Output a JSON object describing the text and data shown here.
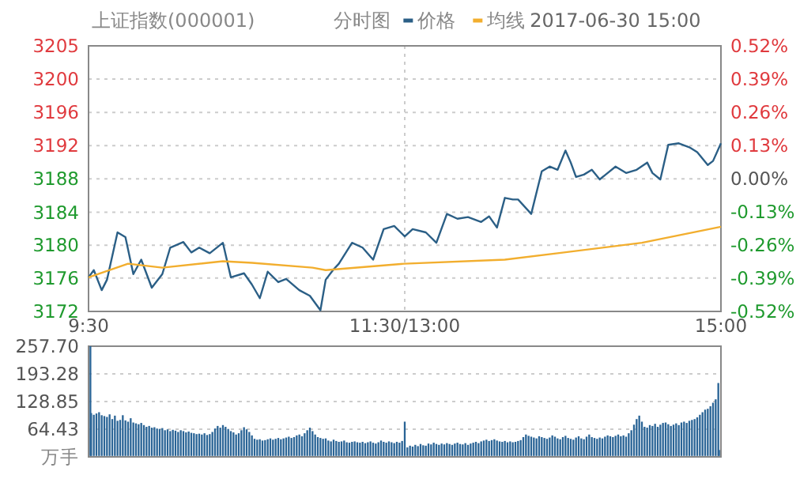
{
  "chart_data": [
    {
      "type": "line",
      "title": "上证指数(000001)",
      "annotations": [
        "分时图",
        "2017-06-30 15:00"
      ],
      "legend": "top",
      "grid": true,
      "categories": [
        "9:30",
        null,
        null,
        null,
        null,
        null,
        null,
        null,
        null,
        null,
        null,
        null,
        null,
        null,
        null,
        null,
        null,
        null,
        null,
        null,
        null,
        null,
        null,
        null,
        null,
        null,
        null,
        null,
        null,
        null,
        null,
        null,
        null,
        null,
        null,
        null,
        null,
        null,
        null,
        null,
        null,
        null,
        null,
        null,
        null,
        null,
        null,
        null,
        null,
        null,
        null,
        null,
        null,
        null,
        null,
        null,
        null,
        null,
        null,
        null,
        null,
        null,
        null,
        null,
        null,
        null,
        null,
        null,
        null,
        null,
        null,
        null,
        null,
        null,
        null,
        null,
        null,
        null,
        null,
        null,
        null,
        null,
        null,
        null,
        null,
        null,
        null,
        null,
        null,
        null,
        null,
        null,
        null,
        null,
        null,
        null,
        null,
        null,
        null,
        null,
        null,
        null,
        null,
        null,
        null,
        null,
        null,
        null,
        null,
        null,
        null,
        null,
        null,
        null,
        null,
        null,
        null,
        null,
        null,
        null,
        "11:30/13:00",
        null,
        null,
        null,
        null,
        null,
        null,
        null,
        null,
        null,
        null,
        null,
        null,
        null,
        null,
        null,
        null,
        null,
        null,
        null,
        null,
        null,
        null,
        null,
        null,
        null,
        null,
        null,
        null,
        null,
        null,
        null,
        null,
        null,
        null,
        null,
        null,
        null,
        null,
        null,
        null,
        null,
        null,
        null,
        null,
        null,
        null,
        null,
        null,
        null,
        null,
        null,
        null,
        null,
        null,
        null,
        null,
        null,
        null,
        null,
        null,
        null,
        null,
        null,
        null,
        null,
        null,
        null,
        null,
        null,
        null,
        null,
        null,
        null,
        null,
        null,
        null,
        null,
        null,
        null,
        null,
        null,
        null,
        null,
        null,
        null,
        null,
        null,
        null,
        null,
        null,
        null,
        null,
        null,
        null,
        null,
        null,
        null,
        null,
        null,
        null,
        null,
        null,
        null,
        null,
        null,
        null,
        null,
        null,
        null,
        null,
        null,
        null,
        null,
        null,
        null,
        null,
        null,
        null,
        null,
        "15:00"
      ],
      "ylim": [
        3171.55,
        3204.64
      ],
      "yticks": [
        {
          "value": 3171.55,
          "label": "3172"
        },
        {
          "value": 3175.7,
          "label": "3176"
        },
        {
          "value": 3179.8,
          "label": "3180"
        },
        {
          "value": 3183.9,
          "label": "3184"
        },
        {
          "value": 3188.06,
          "label": "3188"
        },
        {
          "value": 3192.2,
          "label": "3192"
        },
        {
          "value": 3196.35,
          "label": "3196"
        },
        {
          "value": 3200.5,
          "label": "3200"
        },
        {
          "value": 3204.64,
          "label": "3205"
        }
      ],
      "y2lim": [
        -0.52,
        0.52
      ],
      "y2ticks": [
        {
          "value": -0.52,
          "label": "-0.52%"
        },
        {
          "value": -0.39,
          "label": "-0.39%"
        },
        {
          "value": -0.26,
          "label": "-0.26%"
        },
        {
          "value": -0.13,
          "label": "-0.13%"
        },
        {
          "value": 0,
          "label": "0.00%"
        },
        {
          "value": 0.13,
          "label": "0.13%"
        },
        {
          "value": 0.26,
          "label": "0.26%"
        },
        {
          "value": 0.39,
          "label": "0.39%"
        },
        {
          "value": 0.52,
          "label": "0.52%"
        }
      ],
      "series": [
        {
          "name": "价格",
          "color": "#2b5f86",
          "values": [
            3175.8,
            null,
            3176.7,
            null,
            null,
            3174.2,
            null,
            3175.5,
            null,
            null,
            null,
            3181.4,
            null,
            null,
            3180.8,
            null,
            null,
            3176.2,
            null,
            null,
            3178.0,
            null,
            null,
            null,
            3174.5,
            null,
            null,
            null,
            3176.2,
            null,
            null,
            3179.5,
            null,
            null,
            null,
            null,
            3180.2,
            null,
            null,
            3178.9,
            null,
            null,
            3179.5,
            null,
            null,
            null,
            3178.8,
            null,
            null,
            null,
            null,
            3180.1,
            null,
            null,
            3175.8,
            null,
            null,
            null,
            null,
            3176.3,
            null,
            null,
            3174.9,
            null,
            null,
            3173.2,
            null,
            null,
            3176.5,
            null,
            null,
            null,
            3175.2,
            null,
            null,
            3175.6,
            null,
            null,
            null,
            null,
            3174.2,
            null,
            null,
            null,
            3173.5,
            null,
            null,
            null,
            3171.7,
            null,
            3175.5,
            null,
            null,
            3176.8,
            null,
            3177.5,
            null,
            null,
            null,
            null,
            3180.1,
            null,
            null,
            null,
            3179.5,
            null,
            null,
            null,
            3178.0,
            null,
            null,
            null,
            3181.8,
            null,
            null,
            null,
            3182.2,
            null,
            null,
            null,
            3180.9,
            null,
            null,
            3181.8,
            null,
            null,
            null,
            null,
            3181.4,
            null,
            null,
            null,
            3180.1,
            null,
            null,
            null,
            3183.7,
            null,
            null,
            null,
            3183.1,
            null,
            null,
            null,
            3183.3,
            null,
            null,
            null,
            null,
            3182.7,
            null,
            null,
            3183.4,
            null,
            null,
            3182.0,
            null,
            null,
            3185.7,
            null,
            null,
            3185.5,
            null,
            3185.5,
            null,
            null,
            null,
            null,
            3183.7,
            null,
            null,
            null,
            3189.0,
            null,
            null,
            3189.6,
            null,
            null,
            3189.2,
            null,
            null,
            3191.6,
            null,
            3190.1,
            null,
            3188.3,
            null,
            null,
            3188.6,
            null,
            null,
            3189.2,
            null,
            null,
            3188.0,
            null,
            null,
            3188.8,
            null,
            null,
            3189.6,
            null,
            null,
            null,
            3188.8,
            null,
            null,
            null,
            3189.2,
            null,
            null,
            null,
            3190.1,
            null,
            3188.8,
            null,
            null,
            3188.0,
            null,
            null,
            3192.3,
            null,
            null,
            null,
            3192.5,
            null,
            null,
            null,
            3192.0,
            null,
            null,
            3191.4,
            null,
            null,
            null,
            3189.8,
            null,
            3190.3,
            null,
            null,
            3192.5
          ]
        },
        {
          "name": "均线",
          "color": "#f2ae2e",
          "values": [
            3175.8,
            null,
            null,
            null,
            null,
            null,
            null,
            null,
            null,
            null,
            null,
            null,
            null,
            null,
            null,
            3177.5,
            null,
            null,
            null,
            null,
            null,
            null,
            null,
            null,
            null,
            null,
            null,
            null,
            3177.0,
            null,
            null,
            null,
            null,
            null,
            null,
            null,
            null,
            null,
            null,
            null,
            null,
            null,
            null,
            null,
            null,
            null,
            null,
            null,
            null,
            null,
            null,
            3177.8,
            null,
            null,
            null,
            null,
            null,
            null,
            null,
            null,
            null,
            null,
            3177.6,
            null,
            null,
            null,
            null,
            null,
            null,
            null,
            null,
            null,
            null,
            null,
            null,
            null,
            null,
            null,
            null,
            null,
            null,
            null,
            null,
            null,
            null,
            3177.0,
            null,
            null,
            null,
            null,
            3176.7,
            null,
            null,
            null,
            null,
            null,
            null,
            null,
            null,
            null,
            null,
            null,
            null,
            null,
            null,
            null,
            null,
            null,
            null,
            null,
            null,
            null,
            null,
            null,
            null,
            null,
            null,
            null,
            null,
            null,
            3177.5,
            null,
            null,
            null,
            null,
            null,
            null,
            null,
            null,
            null,
            null,
            null,
            null,
            null,
            null,
            null,
            null,
            null,
            null,
            null,
            null,
            null,
            null,
            null,
            null,
            null,
            null,
            null,
            null,
            null,
            null,
            null,
            null,
            null,
            null,
            null,
            null,
            null,
            3178.0,
            null,
            null,
            null,
            null,
            null,
            null,
            null,
            null,
            null,
            null,
            null,
            null,
            null,
            null,
            null,
            null,
            null,
            null,
            null,
            3178.8,
            null,
            null,
            null,
            null,
            null,
            null,
            null,
            null,
            null,
            null,
            null,
            null,
            null,
            null,
            null,
            null,
            null,
            null,
            null,
            null,
            null,
            null,
            null,
            null,
            null,
            null,
            null,
            null,
            null,
            null,
            null,
            3180.1,
            null,
            null,
            null,
            null,
            null,
            null,
            null,
            null,
            null,
            null,
            null,
            null,
            null,
            null,
            null,
            null,
            null,
            null,
            null,
            null,
            null,
            null,
            null,
            null,
            null,
            null,
            null,
            null,
            null,
            3182.1
          ]
        }
      ]
    },
    {
      "type": "bar",
      "ylabel": "万手",
      "grid": "y",
      "tick_labels": "y",
      "color": "#2a6496",
      "ylim": [
        0,
        257.7
      ],
      "yticks": [
        {
          "value": 0,
          "label": null
        },
        {
          "value": 64.43,
          "label": "64.43"
        },
        {
          "value": 128.85,
          "label": "128.85"
        },
        {
          "value": 193.28,
          "label": "193.28"
        },
        {
          "value": 257.7,
          "label": "257.70"
        }
      ],
      "categories": [
        null,
        null,
        null,
        null,
        null,
        null,
        null,
        null,
        null,
        null,
        null,
        null,
        null,
        null,
        null,
        null,
        null,
        null,
        null,
        null,
        null,
        null,
        null,
        null,
        null,
        null,
        null,
        null,
        null,
        null,
        null,
        null,
        null,
        null,
        null,
        null,
        null,
        null,
        null,
        null,
        null,
        null,
        null,
        null,
        null,
        null,
        null,
        null,
        null,
        null,
        null,
        null,
        null,
        null,
        null,
        null,
        null,
        null,
        null,
        null,
        null,
        null,
        null,
        null,
        null,
        null,
        null,
        null,
        null,
        null,
        null,
        null,
        null,
        null,
        null,
        null,
        null,
        null,
        null,
        null,
        null,
        null,
        null,
        null,
        null,
        null,
        null,
        null,
        null,
        null,
        null,
        null,
        null,
        null,
        null,
        null,
        null,
        null,
        null,
        null,
        null,
        null,
        null,
        null,
        null,
        null,
        null,
        null,
        null,
        null,
        null,
        null,
        null,
        null,
        null,
        null,
        null,
        null,
        null,
        null,
        null,
        null,
        null,
        null,
        null,
        null,
        null,
        null,
        null,
        null,
        null,
        null,
        null,
        null,
        null,
        null,
        null,
        null,
        null,
        null,
        null,
        null,
        null,
        null,
        null,
        null,
        null,
        null,
        null,
        null,
        null,
        null,
        null,
        null,
        null,
        null,
        null,
        null,
        null,
        null,
        null,
        null,
        null,
        null,
        null,
        null,
        null,
        null,
        null,
        null,
        null,
        null,
        null,
        null,
        null,
        null,
        null,
        null,
        null,
        null,
        null,
        null,
        null,
        null,
        null,
        null,
        null,
        null,
        null,
        null,
        null,
        null,
        null,
        null,
        null,
        null,
        null,
        null,
        null,
        null,
        null,
        null,
        null,
        null,
        null,
        null,
        null,
        null,
        null,
        null,
        null,
        null,
        null,
        null,
        null,
        null,
        null,
        null,
        null,
        null,
        null,
        null,
        null,
        null,
        null,
        null,
        null,
        null,
        null,
        null,
        null,
        null,
        null,
        null,
        null,
        null,
        null,
        null,
        null,
        null,
        null
      ],
      "values": [
        257.7,
        102,
        98,
        101,
        104,
        97,
        95,
        93,
        99,
        88,
        96,
        84,
        86,
        97,
        85,
        82,
        90,
        80,
        78,
        76,
        79,
        74,
        70,
        72,
        68,
        69,
        66,
        65,
        67,
        62,
        64,
        60,
        63,
        61,
        58,
        62,
        60,
        57,
        59,
        56,
        55,
        53,
        54,
        52,
        55,
        51,
        53,
        58,
        66,
        72,
        68,
        74,
        70,
        65,
        60,
        57,
        52,
        55,
        62,
        69,
        64,
        58,
        50,
        42,
        40,
        41,
        38,
        39,
        41,
        43,
        40,
        42,
        44,
        41,
        43,
        45,
        47,
        44,
        46,
        50,
        52,
        48,
        55,
        62,
        68,
        60,
        52,
        46,
        44,
        42,
        43,
        38,
        36,
        40,
        37,
        35,
        36,
        38,
        34,
        33,
        35,
        36,
        34,
        33,
        35,
        32,
        34,
        36,
        33,
        31,
        34,
        38,
        35,
        33,
        36,
        34,
        32,
        35,
        33,
        37,
        82,
        22,
        26,
        24,
        28,
        25,
        30,
        27,
        26,
        31,
        29,
        33,
        30,
        28,
        31,
        29,
        32,
        30,
        28,
        31,
        33,
        30,
        29,
        32,
        28,
        31,
        33,
        35,
        32,
        36,
        38,
        40,
        37,
        39,
        41,
        38,
        36,
        35,
        37,
        34,
        36,
        34,
        35,
        37,
        39,
        46,
        52,
        49,
        47,
        45,
        43,
        48,
        46,
        44,
        42,
        45,
        50,
        47,
        43,
        41,
        46,
        49,
        44,
        42,
        40,
        45,
        48,
        43,
        41,
        47,
        52,
        46,
        44,
        42,
        45,
        43,
        47,
        50,
        48,
        46,
        49,
        52,
        48,
        50,
        47,
        55,
        62,
        75,
        88,
        96,
        82,
        70,
        68,
        74,
        72,
        77,
        70,
        75,
        79,
        80,
        76,
        72,
        75,
        78,
        74,
        80,
        82,
        79,
        84,
        86,
        88,
        92,
        98,
        104,
        110,
        112,
        118,
        126,
        134,
        172,
        16
      ]
    }
  ]
}
